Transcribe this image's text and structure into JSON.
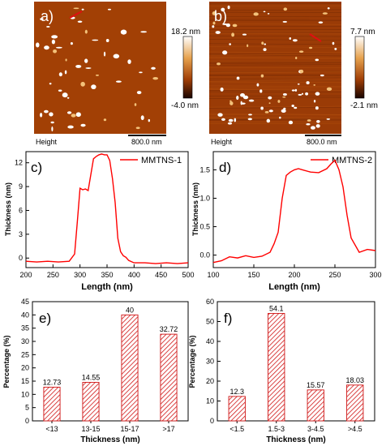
{
  "afm_panels": [
    {
      "panel_label": "a)",
      "scale_max": "18.2 nm",
      "scale_min": "-4.0 nm",
      "height_label": "Height",
      "scalebar_label": "800.0 nm",
      "colors": {
        "dark": "#3d0f02",
        "mid": "#a03e06",
        "light": "#d7802a",
        "white": "#ffffff"
      }
    },
    {
      "panel_label": "b)",
      "scale_max": "7.7 nm",
      "scale_min": "-2.1 nm",
      "height_label": "Height",
      "scalebar_label": "800.0 nm",
      "colors": {
        "dark": "#3d0f02",
        "mid": "#a03e06",
        "light": "#d7802a",
        "white": "#ffffff"
      }
    }
  ],
  "chart_data": [
    {
      "type": "line",
      "panel_label": "c)",
      "series": [
        {
          "name": "MMTNS-1",
          "color": "#ff0000",
          "x": [
            200,
            220,
            240,
            260,
            280,
            290,
            295,
            300,
            305,
            310,
            315,
            320,
            325,
            330,
            335,
            340,
            345,
            350,
            355,
            360,
            365,
            370,
            375,
            380,
            385,
            390,
            400,
            420,
            440,
            460,
            480,
            500
          ],
          "y": [
            -0.4,
            -0.5,
            -0.4,
            -0.5,
            -0.4,
            0.5,
            4.5,
            8.8,
            8.6,
            8.7,
            8.5,
            10.5,
            12.5,
            12.8,
            13.0,
            13.1,
            13.0,
            13.0,
            12.3,
            10.0,
            7.0,
            2.5,
            0.8,
            0.3,
            0.1,
            -0.3,
            -0.6,
            -0.6,
            -0.7,
            -0.6,
            -0.7,
            -0.6
          ]
        }
      ],
      "xlabel": "Length (nm)",
      "ylabel": "Thickness (nm)",
      "xlim": [
        200,
        500
      ],
      "ylim": [
        -1.2,
        13.4
      ],
      "xticks": [
        200,
        250,
        300,
        350,
        400,
        450,
        500
      ],
      "yticks": [
        0,
        3,
        6,
        9,
        12
      ],
      "legend_position": "top-right"
    },
    {
      "type": "line",
      "panel_label": "d)",
      "series": [
        {
          "name": "MMTNS-2",
          "color": "#ff0000",
          "x": [
            100,
            110,
            120,
            130,
            140,
            150,
            160,
            170,
            175,
            180,
            185,
            190,
            195,
            200,
            205,
            210,
            220,
            230,
            240,
            245,
            250,
            255,
            260,
            265,
            270,
            280,
            290,
            300
          ],
          "y": [
            -0.13,
            -0.1,
            -0.03,
            -0.05,
            -0.01,
            -0.04,
            -0.02,
            0.05,
            0.2,
            0.4,
            1.0,
            1.4,
            1.46,
            1.5,
            1.52,
            1.5,
            1.46,
            1.45,
            1.52,
            1.6,
            1.67,
            1.5,
            1.2,
            0.7,
            0.3,
            0.05,
            0.1,
            0.08
          ]
        }
      ],
      "xlabel": "Length (nm)",
      "ylabel": "Thickness (nm)",
      "xlim": [
        100,
        300
      ],
      "ylim": [
        -0.22,
        1.82
      ],
      "xticks": [
        100,
        150,
        200,
        250,
        300
      ],
      "yticks": [
        -0.5,
        0.0,
        0.5,
        1.0,
        1.5
      ],
      "ytick_labels": [
        "0.0",
        "0.5",
        "1.0",
        "1.5"
      ],
      "legend_position": "top-right"
    },
    {
      "type": "bar",
      "panel_label": "e)",
      "categories": [
        "<13",
        "13-15",
        "15-17",
        ">17"
      ],
      "values": [
        12.73,
        14.55,
        40,
        32.72
      ],
      "value_labels": [
        "12.73",
        "14.55",
        "40",
        "32.72"
      ],
      "xlabel": "Thickness (nm)",
      "ylabel": "Percentage (%)",
      "ylim": [
        0,
        45
      ],
      "yticks": [
        0,
        5,
        10,
        15,
        20,
        25,
        30,
        35,
        40,
        45
      ],
      "bar_color": "#d01515"
    },
    {
      "type": "bar",
      "panel_label": "f)",
      "categories": [
        "<1.5",
        "1.5-3",
        "3-4.5",
        ">4.5"
      ],
      "values": [
        12.3,
        54.1,
        15.57,
        18.03
      ],
      "value_labels": [
        "12.3",
        "54.1",
        "15.57",
        "18.03"
      ],
      "xlabel": "Thickness (nm)",
      "ylabel": "Percentage (%)",
      "ylim": [
        0,
        60
      ],
      "yticks": [
        0,
        10,
        20,
        30,
        40,
        50,
        60
      ],
      "bar_color": "#d01515"
    }
  ]
}
